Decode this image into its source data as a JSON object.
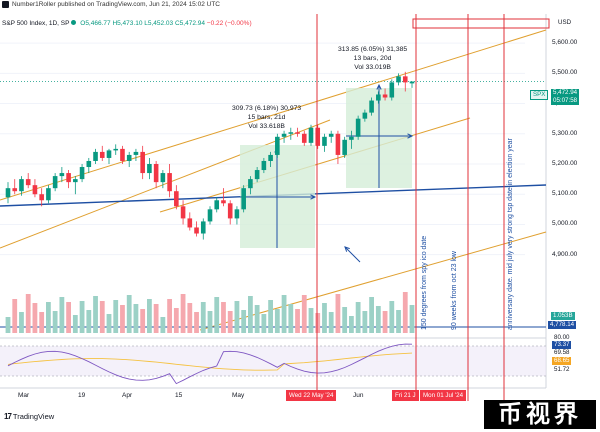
{
  "header": {
    "publisher": "Number1Roller published on TradingView.com, Jun 21, 2024 15:02 UTC",
    "tv_logo_icon": "tradingview-logo-icon"
  },
  "symbol_line": {
    "name": "S&P 500 Index, 1D, SP",
    "open": "O5,466.77",
    "high": "H5,473.10",
    "low": "L5,452.03",
    "close": "C5,472.94",
    "change": "−0.22 (−0.00%)",
    "status_color": "#089981"
  },
  "price_axis": {
    "currency": "USD",
    "ticks": [
      "5,600.00",
      "5,500.00",
      "5,400.00",
      "5,300.00",
      "5,200.00",
      "5,100.00",
      "5,000.00",
      "4,900.00"
    ],
    "spx_tag": "SPX",
    "last_price": "5,472.94",
    "countdown": "05:07:58",
    "volume_tag": "1.053B",
    "level_tag": "4,778.14"
  },
  "rsi_axis": {
    "ticks": [
      "80.00",
      "73.37",
      "69.58",
      "68.65",
      "51.72"
    ]
  },
  "annotations": {
    "box1": {
      "line1": "309.73 (6.18%) 30,973",
      "line2": "15 bars, 21d",
      "line3": "Vol 33.618B"
    },
    "box2": {
      "line1": "313.85 (6.05%) 31,385",
      "line2": "13 bars, 20d",
      "line3": "Vol 33.019B"
    },
    "notes": [
      "150 degrees from spy ico date",
      "90 weeks from oct 23 low",
      "anniversary date. mid july very strong tsp date in election year"
    ]
  },
  "time_axis": {
    "labels": [
      "Mar",
      "19",
      "Apr",
      "15",
      "May",
      "Jun"
    ],
    "tags": [
      "Wed 22 May '24",
      "Fri 21 J",
      "Mon 01 Jul '24"
    ]
  },
  "footer": {
    "brand": "TradingView",
    "watermark": "币视界"
  },
  "colors": {
    "up": "#089981",
    "down": "#f23645",
    "vol_up": "#9cd1c6",
    "vol_down": "#f5a8ae",
    "channel": "#e0a030",
    "trend_blue": "#1e4fa3",
    "marker_red": "#e0303a",
    "measure_fill": "#d4edd8"
  },
  "chart_data": {
    "type": "candlestick",
    "title": "S&P 500 Index, 1D, SP",
    "x_labels": [
      "Mar",
      "19",
      "Apr",
      "15",
      "May",
      "Jun"
    ],
    "ylim": [
      4750,
      5650
    ],
    "series": [
      {
        "name": "S&P 500 Index",
        "ohlc": [
          [
            5090,
            5140,
            5070,
            5120
          ],
          [
            5120,
            5150,
            5100,
            5110
          ],
          [
            5110,
            5160,
            5095,
            5150
          ],
          [
            5150,
            5170,
            5120,
            5130
          ],
          [
            5130,
            5150,
            5090,
            5100
          ],
          [
            5100,
            5120,
            5060,
            5080
          ],
          [
            5080,
            5130,
            5070,
            5120
          ],
          [
            5120,
            5170,
            5110,
            5160
          ],
          [
            5160,
            5190,
            5140,
            5170
          ],
          [
            5170,
            5180,
            5120,
            5140
          ],
          [
            5140,
            5160,
            5100,
            5150
          ],
          [
            5150,
            5200,
            5140,
            5190
          ],
          [
            5190,
            5220,
            5170,
            5210
          ],
          [
            5210,
            5250,
            5200,
            5240
          ],
          [
            5240,
            5260,
            5210,
            5220
          ],
          [
            5220,
            5250,
            5200,
            5245
          ],
          [
            5245,
            5265,
            5230,
            5250
          ],
          [
            5250,
            5260,
            5200,
            5210
          ],
          [
            5210,
            5240,
            5190,
            5230
          ],
          [
            5230,
            5250,
            5210,
            5240
          ],
          [
            5240,
            5260,
            5150,
            5170
          ],
          [
            5170,
            5220,
            5150,
            5200
          ],
          [
            5200,
            5210,
            5120,
            5140
          ],
          [
            5140,
            5180,
            5120,
            5170
          ],
          [
            5170,
            5200,
            5090,
            5110
          ],
          [
            5110,
            5130,
            5050,
            5060
          ],
          [
            5060,
            5080,
            5000,
            5020
          ],
          [
            5020,
            5040,
            4980,
            4990
          ],
          [
            4990,
            5010,
            4960,
            4970
          ],
          [
            4970,
            5020,
            4950,
            5010
          ],
          [
            5010,
            5060,
            5000,
            5050
          ],
          [
            5050,
            5090,
            5040,
            5080
          ],
          [
            5080,
            5120,
            5060,
            5070
          ],
          [
            5070,
            5080,
            5000,
            5020
          ],
          [
            5020,
            5060,
            5000,
            5050
          ],
          [
            5050,
            5130,
            5040,
            5120
          ],
          [
            5120,
            5160,
            5100,
            5150
          ],
          [
            5150,
            5190,
            5140,
            5180
          ],
          [
            5180,
            5220,
            5170,
            5210
          ],
          [
            5210,
            5240,
            5190,
            5230
          ],
          [
            5230,
            5300,
            5220,
            5290
          ],
          [
            5290,
            5310,
            5270,
            5300
          ],
          [
            5300,
            5320,
            5280,
            5305
          ],
          [
            5305,
            5320,
            5290,
            5300
          ],
          [
            5300,
            5310,
            5260,
            5270
          ],
          [
            5270,
            5330,
            5260,
            5320
          ],
          [
            5320,
            5330,
            5250,
            5260
          ],
          [
            5260,
            5300,
            5240,
            5290
          ],
          [
            5290,
            5310,
            5270,
            5300
          ],
          [
            5300,
            5310,
            5200,
            5230
          ],
          [
            5230,
            5290,
            5220,
            5280
          ],
          [
            5280,
            5310,
            5250,
            5290
          ],
          [
            5290,
            5360,
            5280,
            5350
          ],
          [
            5350,
            5380,
            5340,
            5370
          ],
          [
            5370,
            5420,
            5360,
            5410
          ],
          [
            5410,
            5440,
            5400,
            5430
          ],
          [
            5430,
            5450,
            5410,
            5420
          ],
          [
            5420,
            5480,
            5410,
            5470
          ],
          [
            5470,
            5500,
            5460,
            5490
          ],
          [
            5490,
            5505,
            5440,
            5470
          ],
          [
            5466.77,
            5473.1,
            5452.03,
            5472.94
          ]
        ]
      }
    ],
    "volume_unit": "B",
    "last_volume": 1.053,
    "rsi_last": 73.37
  }
}
